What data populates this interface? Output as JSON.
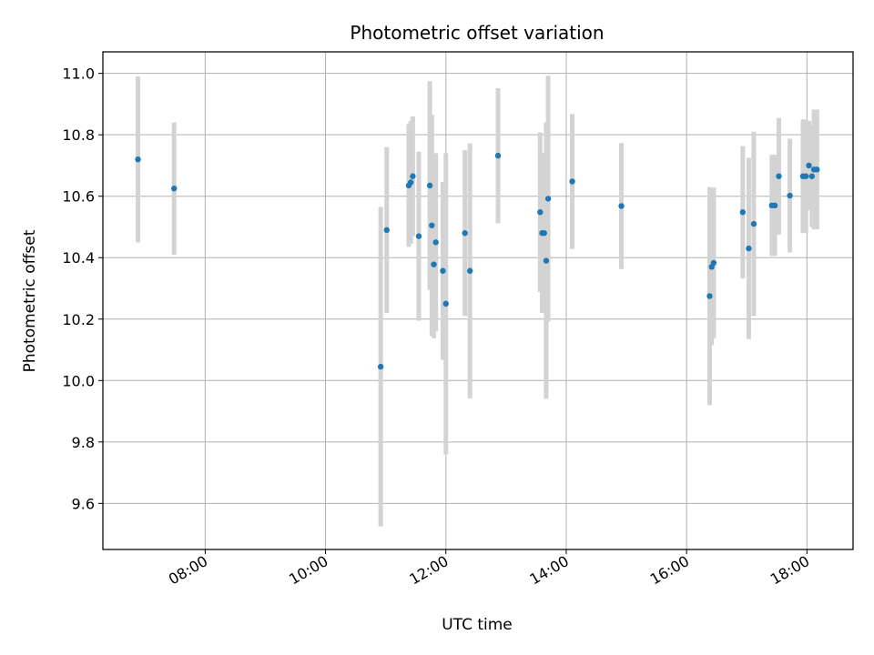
{
  "chart_data": {
    "type": "scatter",
    "title": "Photometric offset variation",
    "xlabel": "UTC time",
    "ylabel": "Photometric offset",
    "x_ticks": [
      "08:00",
      "10:00",
      "12:00",
      "14:00",
      "16:00",
      "18:00"
    ],
    "y_ticks": [
      "9.6",
      "9.8",
      "10.0",
      "10.2",
      "10.4",
      "10.6",
      "10.8",
      "11.0"
    ],
    "xlim": [
      "06:18",
      "18:46"
    ],
    "ylim": [
      9.45,
      11.07
    ],
    "grid": true,
    "colors": {
      "point": "#1f77b4",
      "errorbar": "#d3d3d3",
      "grid": "#b0b0b0"
    },
    "series": [
      {
        "points": [
          {
            "x": "06:53",
            "y": 10.72,
            "err": 0.27
          },
          {
            "x": "07:29",
            "y": 10.625,
            "err": 0.215
          },
          {
            "x": "10:55",
            "y": 10.045,
            "err": 0.52
          },
          {
            "x": "11:01",
            "y": 10.49,
            "err": 0.27
          },
          {
            "x": "11:23",
            "y": 10.635,
            "err": 0.2
          },
          {
            "x": "11:25",
            "y": 10.645,
            "err": 0.2
          },
          {
            "x": "11:27",
            "y": 10.665,
            "err": 0.195
          },
          {
            "x": "11:33",
            "y": 10.47,
            "err": 0.275
          },
          {
            "x": "11:44",
            "y": 10.635,
            "err": 0.34
          },
          {
            "x": "11:46",
            "y": 10.505,
            "err": 0.36
          },
          {
            "x": "11:48",
            "y": 10.378,
            "err": 0.24
          },
          {
            "x": "11:50",
            "y": 10.45,
            "err": 0.29
          },
          {
            "x": "11:57",
            "y": 10.357,
            "err": 0.29
          },
          {
            "x": "12:00",
            "y": 10.25,
            "err": 0.49
          },
          {
            "x": "12:19",
            "y": 10.48,
            "err": 0.27
          },
          {
            "x": "12:24",
            "y": 10.357,
            "err": 0.415
          },
          {
            "x": "12:52",
            "y": 10.732,
            "err": 0.22
          },
          {
            "x": "13:34",
            "y": 10.548,
            "err": 0.26
          },
          {
            "x": "13:36",
            "y": 10.48,
            "err": 0.26
          },
          {
            "x": "13:38",
            "y": 10.48,
            "err": 0.26
          },
          {
            "x": "13:40",
            "y": 10.39,
            "err": 0.45
          },
          {
            "x": "13:42",
            "y": 10.592,
            "err": 0.4
          },
          {
            "x": "14:06",
            "y": 10.648,
            "err": 0.22
          },
          {
            "x": "14:55",
            "y": 10.568,
            "err": 0.205
          },
          {
            "x": "16:23",
            "y": 10.275,
            "err": 0.355
          },
          {
            "x": "16:25",
            "y": 10.37,
            "err": 0.255
          },
          {
            "x": "16:27",
            "y": 10.383,
            "err": 0.245
          },
          {
            "x": "16:56",
            "y": 10.548,
            "err": 0.215
          },
          {
            "x": "17:02",
            "y": 10.43,
            "err": 0.295
          },
          {
            "x": "17:07",
            "y": 10.51,
            "err": 0.3
          },
          {
            "x": "17:25",
            "y": 10.57,
            "err": 0.165
          },
          {
            "x": "17:28",
            "y": 10.57,
            "err": 0.165
          },
          {
            "x": "17:32",
            "y": 10.665,
            "err": 0.19
          },
          {
            "x": "17:43",
            "y": 10.602,
            "err": 0.185
          },
          {
            "x": "17:56",
            "y": 10.665,
            "err": 0.185
          },
          {
            "x": "17:59",
            "y": 10.665,
            "err": 0.185
          },
          {
            "x": "18:02",
            "y": 10.7,
            "err": 0.145
          },
          {
            "x": "18:05",
            "y": 10.665,
            "err": 0.165
          },
          {
            "x": "18:07",
            "y": 10.687,
            "err": 0.195
          },
          {
            "x": "18:10",
            "y": 10.687,
            "err": 0.195
          }
        ]
      }
    ]
  }
}
